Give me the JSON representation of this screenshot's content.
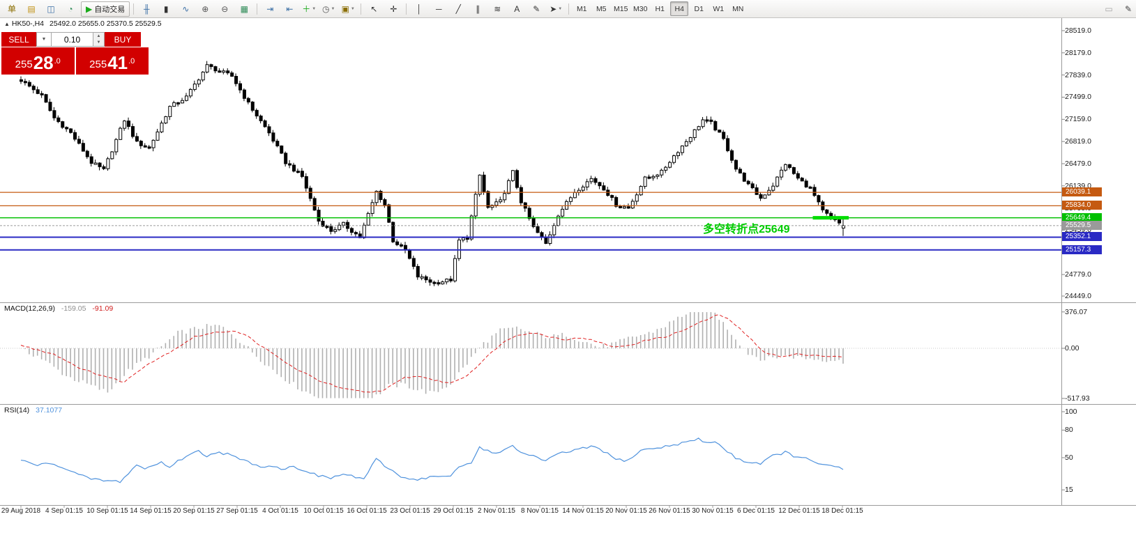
{
  "toolbar": {
    "dropdown_glyph": "▼",
    "groups": [
      {
        "items": [
          {
            "name": "new-order-button",
            "glyph": "单",
            "color": "#8a6d00"
          },
          {
            "name": "charts-profile-button",
            "glyph": "▤",
            "color": "#c09010"
          },
          {
            "name": "market-watch-button",
            "glyph": "◫",
            "color": "#3a6ea5"
          },
          {
            "name": "data-window-button",
            "glyph": "◔",
            "color": "#2e8b57"
          },
          {
            "name": "autotrading-button",
            "glyph": "▶",
            "label": "自动交易",
            "color": "#1aaa1a"
          }
        ]
      },
      {
        "items": [
          {
            "name": "bar-chart-button",
            "glyph": "╫",
            "color": "#3a6ea5"
          },
          {
            "name": "candlestick-chart-button",
            "glyph": "▮",
            "color": "#333333"
          },
          {
            "name": "line-chart-button",
            "glyph": "∿",
            "color": "#3a6ea5"
          },
          {
            "name": "zoom-in-button",
            "glyph": "⊕",
            "color": "#555555"
          },
          {
            "name": "zoom-out-button",
            "glyph": "⊖",
            "color": "#555555"
          },
          {
            "name": "tile-windows-button",
            "glyph": "▦",
            "color": "#2e8b57"
          }
        ]
      },
      {
        "items": [
          {
            "name": "auto-scroll-button",
            "glyph": "⇥",
            "color": "#3a6ea5"
          },
          {
            "name": "chart-shift-button",
            "glyph": "⇤",
            "color": "#3a6ea5"
          },
          {
            "name": "indicators-button",
            "glyph": "＋",
            "dropdown": true,
            "color": "#1aaa1a"
          },
          {
            "name": "periods-button",
            "glyph": "◷",
            "dropdown": true,
            "color": "#555555"
          },
          {
            "name": "templates-button",
            "glyph": "▣",
            "dropdown": true,
            "color": "#8a6d00"
          }
        ]
      },
      {
        "items": [
          {
            "name": "cursor-button",
            "glyph": "↖",
            "color": "#333333"
          },
          {
            "name": "crosshair-button",
            "glyph": "✛",
            "color": "#333333"
          }
        ]
      },
      {
        "items": [
          {
            "name": "vertical-line-button",
            "glyph": "│",
            "color": "#333333"
          },
          {
            "name": "horizontal-line-button",
            "glyph": "─",
            "color": "#333333"
          },
          {
            "name": "trendline-button",
            "glyph": "╱",
            "color": "#333333"
          },
          {
            "name": "channel-button",
            "glyph": "∥",
            "color": "#333333"
          },
          {
            "name": "fibonacci-button",
            "glyph": "≋",
            "color": "#333333"
          },
          {
            "name": "text-button",
            "glyph": "A",
            "color": "#333333"
          },
          {
            "name": "text-label-button",
            "glyph": "✎",
            "color": "#333333"
          },
          {
            "name": "arrows-button",
            "glyph": "➤",
            "dropdown": true,
            "color": "#333333"
          }
        ]
      }
    ],
    "timeframes": {
      "items": [
        "M1",
        "M5",
        "M15",
        "M30",
        "H1",
        "H4",
        "D1",
        "W1",
        "MN"
      ],
      "active": "H4"
    },
    "right_items": [
      {
        "name": "toolbar-extra-button",
        "glyph": "▭"
      },
      {
        "name": "toolbar-edit-button",
        "glyph": "✎"
      }
    ]
  },
  "chart": {
    "symbol_header": {
      "marker": "▲",
      "symbol": "HK50-,H4",
      "ohlc_text": "25492.0 25655.0 25370.5 25529.5"
    },
    "trade_panel": {
      "sell_label": "SELL",
      "buy_label": "BUY",
      "volume": "0.10",
      "sell_price": "25528.0",
      "buy_price": "25541.0",
      "menu_arrow": "▼",
      "spinner_up": "▲",
      "spinner_down": "▼"
    },
    "annotation": {
      "text": "多空转折点25649",
      "color": "#00CC00"
    }
  },
  "chart_data": {
    "type": "candlestick",
    "symbol": "HK50-",
    "timeframe": "H4",
    "last_ohlc": {
      "open": 25492.0,
      "high": 25655.0,
      "low": 25370.5,
      "close": 25529.5
    },
    "price_axis": {
      "min": 24449.0,
      "max": 28519.0,
      "step": 340.0,
      "ticks": [
        28519.0,
        28179.0,
        27839.0,
        27499.0,
        27159.0,
        26819.0,
        26479.0,
        26139.0,
        25799.0,
        25459.0,
        25119.0,
        24779.0,
        24449.0
      ]
    },
    "time_axis_labels": [
      "29 Aug 2018",
      "4 Sep 01:15",
      "10 Sep 01:15",
      "14 Sep 01:15",
      "20 Sep 01:15",
      "27 Sep 01:15",
      "4 Oct 01:15",
      "10 Oct 01:15",
      "16 Oct 01:15",
      "23 Oct 01:15",
      "29 Oct 01:15",
      "2 Nov 01:15",
      "8 Nov 01:15",
      "14 Nov 01:15",
      "20 Nov 01:15",
      "26 Nov 01:15",
      "30 Nov 01:15",
      "6 Dec 01:15",
      "12 Dec 01:15",
      "18 Dec 01:15"
    ],
    "candle_count": 200,
    "noise_amplitude": 60,
    "close_keypoints": [
      [
        0,
        27760
      ],
      [
        5,
        27520
      ],
      [
        8,
        27180
      ],
      [
        12,
        26950
      ],
      [
        17,
        26500
      ],
      [
        20,
        26380
      ],
      [
        25,
        27150
      ],
      [
        28,
        26800
      ],
      [
        31,
        26720
      ],
      [
        36,
        27350
      ],
      [
        40,
        27500
      ],
      [
        45,
        27980
      ],
      [
        48,
        27900
      ],
      [
        51,
        27820
      ],
      [
        55,
        27400
      ],
      [
        60,
        26950
      ],
      [
        64,
        26500
      ],
      [
        68,
        26280
      ],
      [
        72,
        25600
      ],
      [
        75,
        25450
      ],
      [
        78,
        25550
      ],
      [
        82,
        25350
      ],
      [
        86,
        26050
      ],
      [
        88,
        25850
      ],
      [
        90,
        25300
      ],
      [
        93,
        25150
      ],
      [
        96,
        24750
      ],
      [
        100,
        24650
      ],
      [
        104,
        24700
      ],
      [
        106,
        25300
      ],
      [
        108,
        25350
      ],
      [
        111,
        26300
      ],
      [
        113,
        25800
      ],
      [
        116,
        25900
      ],
      [
        119,
        26350
      ],
      [
        121,
        25900
      ],
      [
        124,
        25500
      ],
      [
        127,
        25250
      ],
      [
        130,
        25700
      ],
      [
        134,
        26050
      ],
      [
        138,
        26250
      ],
      [
        141,
        26100
      ],
      [
        144,
        25850
      ],
      [
        147,
        25800
      ],
      [
        151,
        26250
      ],
      [
        155,
        26350
      ],
      [
        158,
        26600
      ],
      [
        162,
        26900
      ],
      [
        165,
        27150
      ],
      [
        167,
        27100
      ],
      [
        170,
        26850
      ],
      [
        173,
        26400
      ],
      [
        176,
        26150
      ],
      [
        179,
        25950
      ],
      [
        182,
        26150
      ],
      [
        185,
        26480
      ],
      [
        188,
        26250
      ],
      [
        191,
        26100
      ],
      [
        194,
        25750
      ],
      [
        197,
        25600
      ],
      [
        199,
        25529.5
      ]
    ],
    "levels": [
      {
        "label": "26039.1",
        "price": 26039.1,
        "color": "#C55A11",
        "width": 1.3
      },
      {
        "label": "25834.0",
        "price": 25834.0,
        "color": "#C55A11",
        "width": 1.3
      },
      {
        "label": "25649.4",
        "price": 25649.4,
        "color": "#00C000",
        "width": 1.5
      },
      {
        "label": "25529.5",
        "price": 25529.5,
        "color": "#9a9a9a",
        "current": true,
        "width": 1
      },
      {
        "label": "25352.1",
        "price": 25352.1,
        "color": "#2A2AC4",
        "width": 2
      },
      {
        "label": "25157.3",
        "price": 25157.3,
        "color": "#2A2AC4",
        "width": 2
      }
    ],
    "highlight_segment": {
      "price": 25649.4,
      "from_index": 192,
      "to_index": 199,
      "color": "#00DD00",
      "thickness": 5
    },
    "macd": {
      "label": "MACD(12,26,9)",
      "main_value": -159.05,
      "signal_value": -91.09,
      "main_value_text": "-159.05",
      "signal_value_text": "-91.09",
      "range": {
        "min": -517.93,
        "max": 376.07
      },
      "axis_ticks": [
        {
          "value": 376.07,
          "label": "376.07"
        },
        {
          "value": 0,
          "label": "0.00"
        },
        {
          "value": -517.93,
          "label": "-517.93"
        }
      ],
      "signal_keypoints": [
        [
          0,
          30
        ],
        [
          8,
          -60
        ],
        [
          15,
          -220
        ],
        [
          25,
          -350
        ],
        [
          30,
          -180
        ],
        [
          36,
          -40
        ],
        [
          42,
          120
        ],
        [
          48,
          170
        ],
        [
          52,
          180
        ],
        [
          55,
          120
        ],
        [
          60,
          -30
        ],
        [
          66,
          -200
        ],
        [
          72,
          -330
        ],
        [
          78,
          -420
        ],
        [
          84,
          -455
        ],
        [
          88,
          -430
        ],
        [
          93,
          -300
        ],
        [
          97,
          -290
        ],
        [
          100,
          -330
        ],
        [
          104,
          -360
        ],
        [
          108,
          -280
        ],
        [
          112,
          -120
        ],
        [
          116,
          40
        ],
        [
          120,
          140
        ],
        [
          124,
          160
        ],
        [
          128,
          120
        ],
        [
          132,
          90
        ],
        [
          136,
          110
        ],
        [
          140,
          60
        ],
        [
          144,
          10
        ],
        [
          148,
          40
        ],
        [
          152,
          90
        ],
        [
          156,
          120
        ],
        [
          160,
          180
        ],
        [
          164,
          260
        ],
        [
          169,
          350
        ],
        [
          172,
          280
        ],
        [
          176,
          120
        ],
        [
          180,
          -40
        ],
        [
          184,
          -90
        ],
        [
          188,
          -60
        ],
        [
          192,
          -70
        ],
        [
          196,
          -85
        ],
        [
          199,
          -91.09
        ]
      ]
    },
    "rsi": {
      "label": "RSI(14)",
      "value": 37.1077,
      "value_text": "37.1077",
      "range": {
        "min": 0,
        "max": 100
      },
      "axis_ticks": [
        {
          "value": 100,
          "label": "100"
        },
        {
          "value": 80,
          "label": "80"
        },
        {
          "value": 50,
          "label": "50"
        },
        {
          "value": 15,
          "label": "15"
        }
      ],
      "keypoints": [
        [
          0,
          47
        ],
        [
          4,
          42
        ],
        [
          8,
          44
        ],
        [
          12,
          35
        ],
        [
          16,
          28
        ],
        [
          20,
          25
        ],
        [
          24,
          24
        ],
        [
          28,
          42
        ],
        [
          30,
          38
        ],
        [
          34,
          45
        ],
        [
          36,
          40
        ],
        [
          40,
          52
        ],
        [
          43,
          57
        ],
        [
          45,
          52
        ],
        [
          47,
          56
        ],
        [
          50,
          54
        ],
        [
          53,
          48
        ],
        [
          56,
          44
        ],
        [
          58,
          40
        ],
        [
          60,
          42
        ],
        [
          63,
          38
        ],
        [
          66,
          40
        ],
        [
          69,
          36
        ],
        [
          72,
          30
        ],
        [
          75,
          28
        ],
        [
          78,
          32
        ],
        [
          80,
          30
        ],
        [
          83,
          27
        ],
        [
          86,
          48
        ],
        [
          89,
          38
        ],
        [
          92,
          30
        ],
        [
          95,
          26
        ],
        [
          98,
          28
        ],
        [
          101,
          30
        ],
        [
          104,
          29
        ],
        [
          106,
          40
        ],
        [
          109,
          44
        ],
        [
          111,
          62
        ],
        [
          114,
          55
        ],
        [
          117,
          58
        ],
        [
          119,
          62
        ],
        [
          121,
          56
        ],
        [
          124,
          52
        ],
        [
          127,
          46
        ],
        [
          130,
          54
        ],
        [
          133,
          57
        ],
        [
          136,
          60
        ],
        [
          139,
          62
        ],
        [
          141,
          57
        ],
        [
          144,
          48
        ],
        [
          147,
          47
        ],
        [
          150,
          58
        ],
        [
          153,
          60
        ],
        [
          156,
          62
        ],
        [
          159,
          65
        ],
        [
          162,
          68
        ],
        [
          164,
          70
        ],
        [
          166,
          66
        ],
        [
          168,
          68
        ],
        [
          170,
          60
        ],
        [
          173,
          50
        ],
        [
          176,
          45
        ],
        [
          179,
          44
        ],
        [
          182,
          52
        ],
        [
          185,
          56
        ],
        [
          188,
          50
        ],
        [
          191,
          48
        ],
        [
          194,
          42
        ],
        [
          197,
          40
        ],
        [
          199,
          37.11
        ]
      ]
    }
  }
}
